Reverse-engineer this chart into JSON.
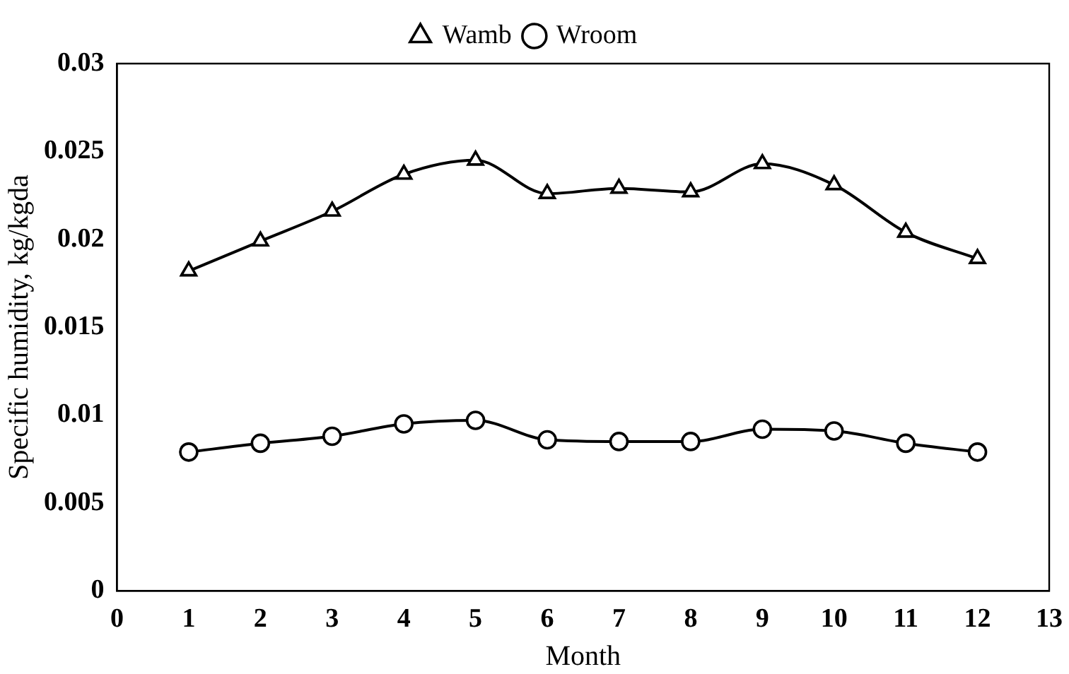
{
  "chart_data": {
    "type": "line",
    "xlabel": "Month",
    "ylabel": "Specific humidity, kg/kgda",
    "x": [
      1,
      2,
      3,
      4,
      5,
      6,
      7,
      8,
      9,
      10,
      11,
      12
    ],
    "series": [
      {
        "name": "Wamb",
        "color": "#000000",
        "marker": "triangle",
        "values": [
          0.0182,
          0.0199,
          0.0216,
          0.0237,
          0.0245,
          0.0226,
          0.0229,
          0.0227,
          0.0243,
          0.0231,
          0.0204,
          0.0189
        ]
      },
      {
        "name": "Wroom",
        "color": "#000000",
        "marker": "circle",
        "values": [
          0.0079,
          0.0084,
          0.0088,
          0.0095,
          0.0097,
          0.0086,
          0.0085,
          0.0085,
          0.0092,
          0.0091,
          0.0084,
          0.0079
        ]
      }
    ],
    "xlim": [
      0,
      13
    ],
    "xticks": [
      0,
      1,
      2,
      3,
      4,
      5,
      6,
      7,
      8,
      9,
      10,
      11,
      12,
      13
    ],
    "ylim": [
      0,
      0.03
    ],
    "yticks": [
      0,
      0.005,
      0.01,
      0.015,
      0.02,
      0.025,
      0.03
    ],
    "grid": false,
    "legend": "top",
    "line_style": "solid"
  }
}
